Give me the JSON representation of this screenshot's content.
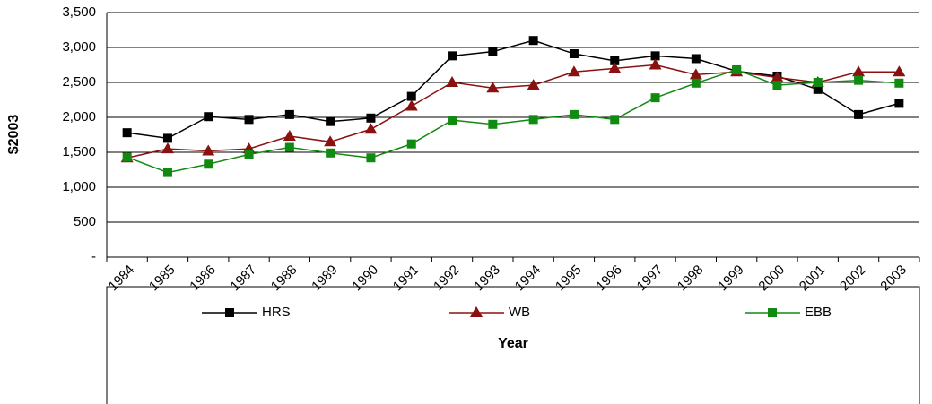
{
  "chart_data": {
    "type": "line",
    "y_label": "$2003",
    "x_label": "Year",
    "categories": [
      "1984",
      "1985",
      "1986",
      "1987",
      "1988",
      "1989",
      "1990",
      "1991",
      "1992",
      "1993",
      "1994",
      "1995",
      "1996",
      "1997",
      "1998",
      "1999",
      "2000",
      "2001",
      "2002",
      "2003"
    ],
    "series": [
      {
        "name": "HRS",
        "color": "#000000",
        "marker": "square",
        "values": [
          1780,
          1700,
          2010,
          1970,
          2040,
          1940,
          1990,
          2300,
          2880,
          2940,
          3100,
          2910,
          2810,
          2880,
          2840,
          2660,
          2590,
          2400,
          2040,
          2200
        ]
      },
      {
        "name": "WB",
        "color": "#8b1010",
        "marker": "triangle",
        "values": [
          1420,
          1550,
          1520,
          1550,
          1730,
          1650,
          1830,
          2160,
          2500,
          2420,
          2460,
          2650,
          2700,
          2750,
          2610,
          2650,
          2570,
          2500,
          2650,
          2650
        ]
      },
      {
        "name": "EBB",
        "color": "#118a11",
        "marker": "square",
        "values": [
          1430,
          1210,
          1330,
          1470,
          1570,
          1490,
          1420,
          1620,
          1960,
          1900,
          1970,
          2040,
          1970,
          2280,
          2490,
          2680,
          2460,
          2500,
          2530,
          2490
        ]
      }
    ],
    "ylim": [
      0,
      3500
    ],
    "yticks": [
      {
        "value": 0,
        "label": "-"
      },
      500,
      {
        "value": 1000,
        "label": "1,000"
      },
      {
        "value": 1500,
        "label": "1,500"
      },
      {
        "value": 2000,
        "label": "2,000"
      },
      {
        "value": 2500,
        "label": "2,500"
      },
      {
        "value": 3000,
        "label": "3,000"
      },
      {
        "value": 3500,
        "label": "3,500"
      }
    ],
    "grid": true,
    "legend": "bottom"
  }
}
